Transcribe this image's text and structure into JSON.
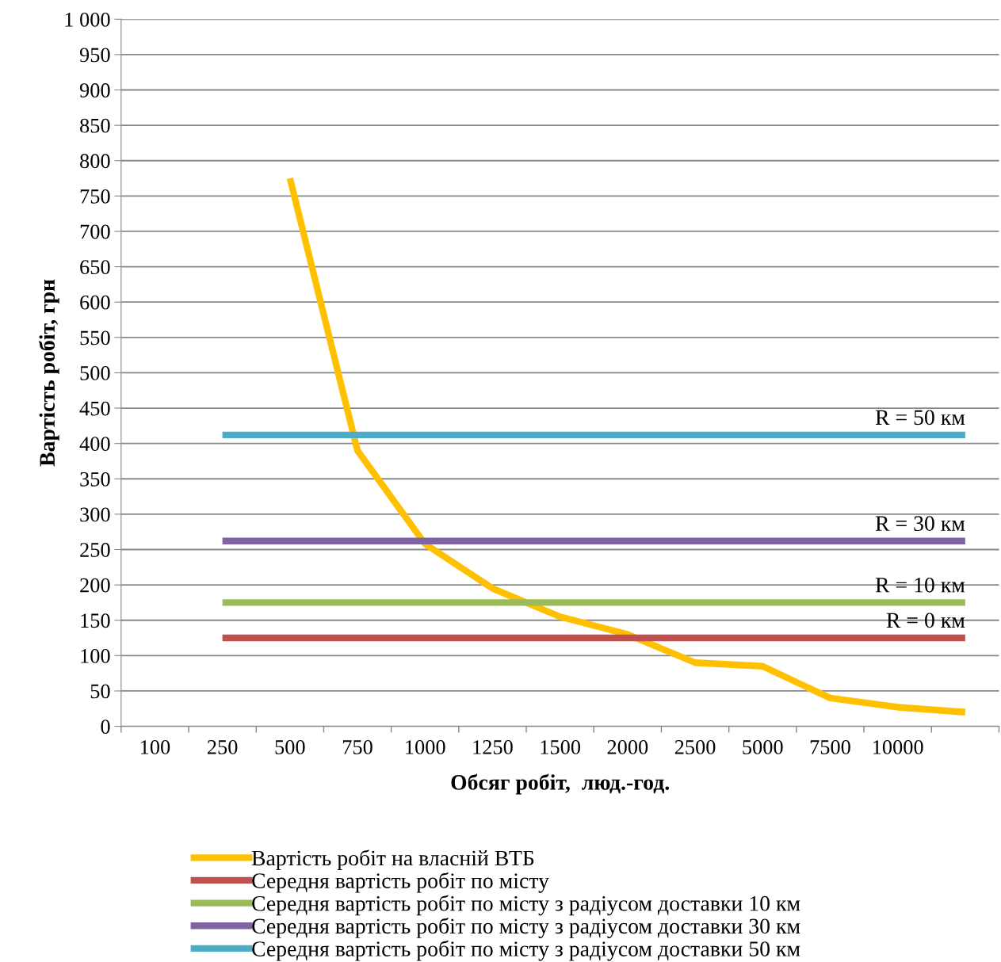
{
  "chart_data": {
    "type": "line",
    "xlabel": "Обсяг робіт,  люд.-год.",
    "ylabel": "Вартість робіт, грн",
    "categories": [
      "100",
      "250",
      "500",
      "750",
      "1000",
      "1250",
      "1500",
      "2000",
      "2500",
      "5000",
      "7500",
      "10000",
      null
    ],
    "series": [
      {
        "name": "Вартість робіт на власній ВТБ",
        "color": "#ffc000",
        "values": [
          null,
          null,
          775,
          390,
          258,
          195,
          155,
          130,
          90,
          85,
          40,
          27,
          20
        ]
      },
      {
        "name": "Середня вартість робіт по місту",
        "color": "#c0504d",
        "values": [
          null,
          125,
          125,
          125,
          125,
          125,
          125,
          125,
          125,
          125,
          125,
          125,
          125
        ]
      },
      {
        "name": "Середня вартість робіт по місту з радіусом доставки 10 км",
        "color": "#9bbb59",
        "values": [
          null,
          175,
          175,
          175,
          175,
          175,
          175,
          175,
          175,
          175,
          175,
          175,
          175
        ]
      },
      {
        "name": "Середня вартість робіт по місту з радіусом доставки 30 км",
        "color": "#8064a2",
        "values": [
          null,
          262,
          262,
          262,
          262,
          262,
          262,
          262,
          262,
          262,
          262,
          262,
          262
        ]
      },
      {
        "name": "Середня вартість робіт по місту з радіусом доставки 50 км",
        "color": "#4bacc6",
        "values": [
          null,
          412,
          412,
          412,
          412,
          412,
          412,
          412,
          412,
          412,
          412,
          412,
          412
        ]
      }
    ],
    "ylim": [
      0,
      1000
    ],
    "yticks": [
      0,
      50,
      100,
      150,
      200,
      250,
      300,
      350,
      400,
      450,
      500,
      550,
      600,
      650,
      700,
      750,
      800,
      850,
      900,
      950,
      {
        "value": 1000,
        "label": "1 000"
      }
    ],
    "grid": "y",
    "legend": "bottom",
    "marker": "none",
    "line_style": "solid",
    "annotations": [
      {
        "text": "R = 50 км",
        "y": 412
      },
      {
        "text": "R = 30 км",
        "y": 262
      },
      {
        "text": "R = 10 км",
        "y": 175
      },
      {
        "text": "R = 0 км",
        "y": 125
      }
    ]
  }
}
